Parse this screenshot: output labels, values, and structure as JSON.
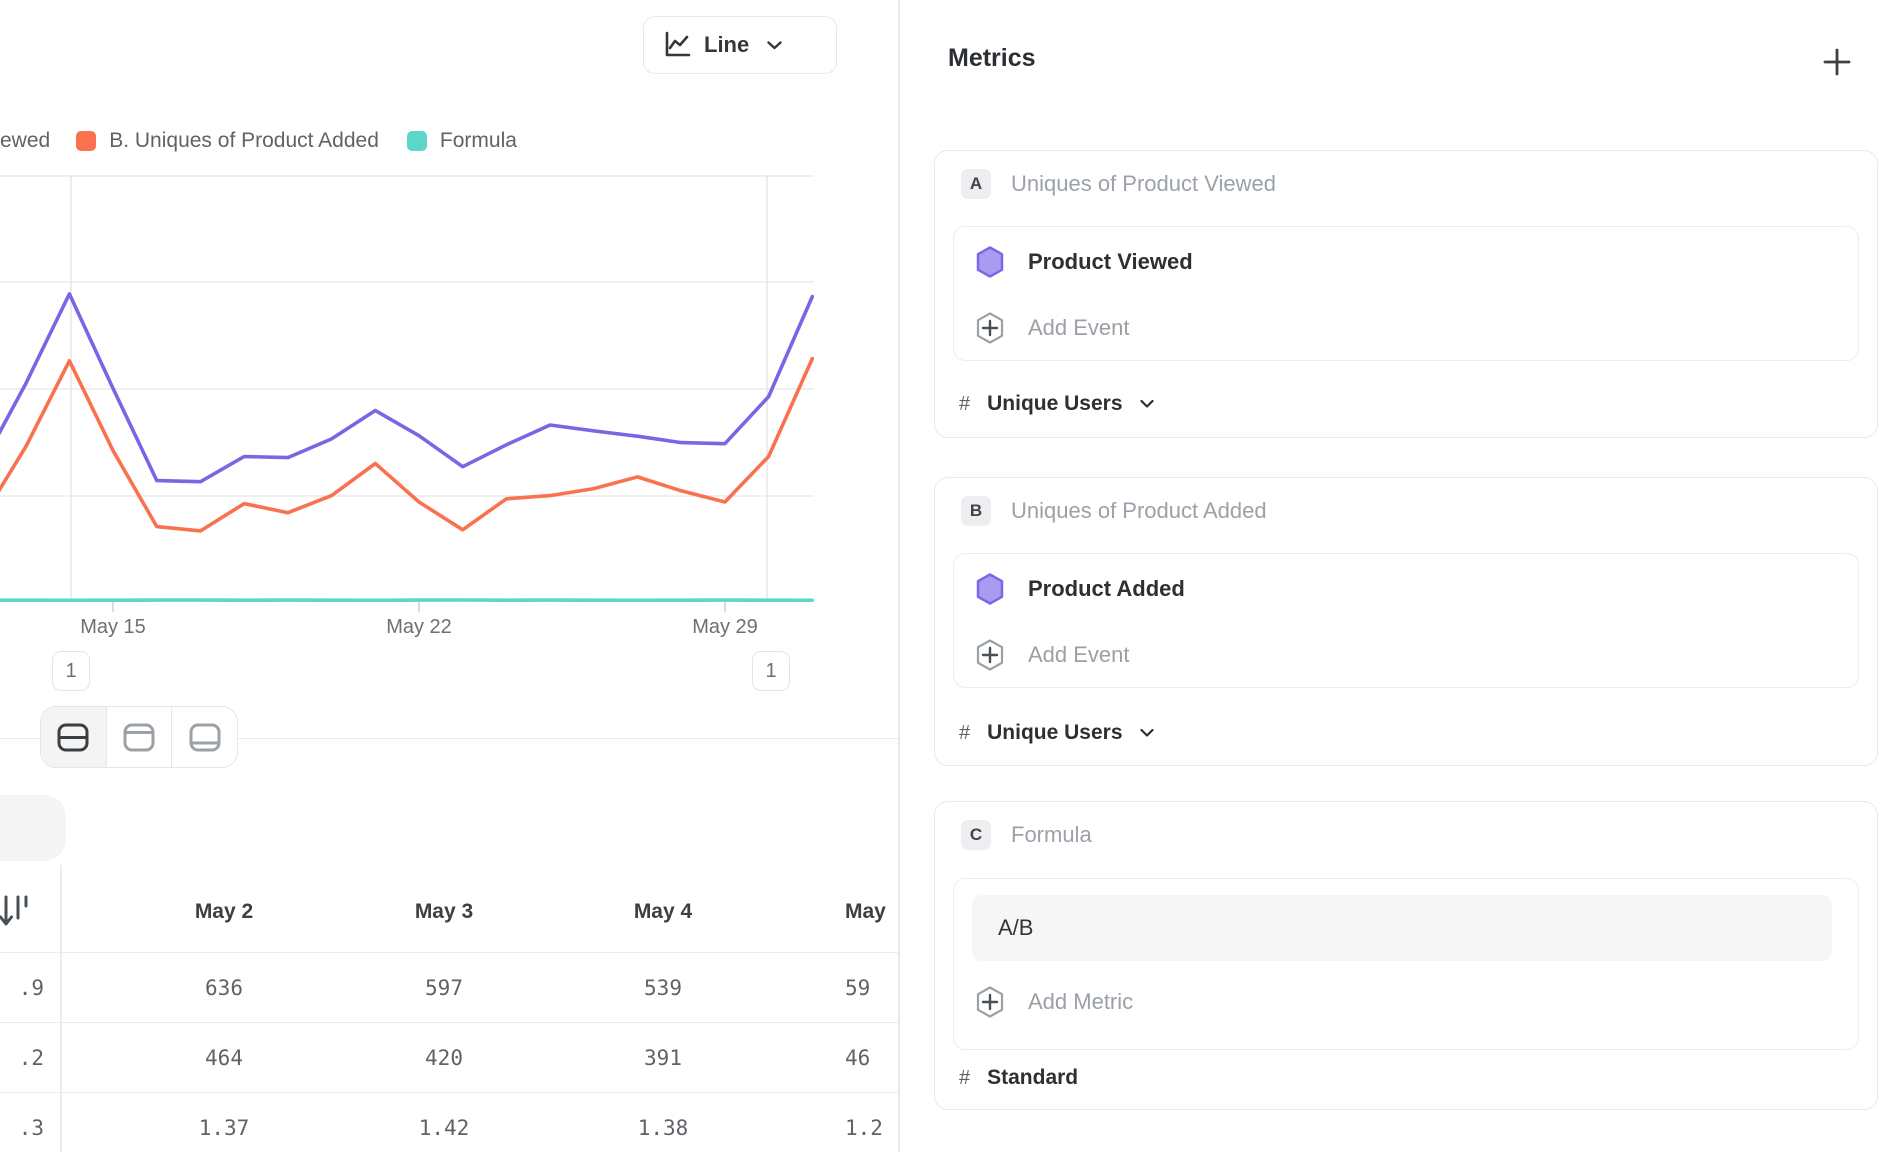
{
  "chart_controls": {
    "type_label": "Line"
  },
  "legend": {
    "partial_item_label": "ewed",
    "items": [
      {
        "label": "B. Uniques of Product Added",
        "color": "#f9714f"
      },
      {
        "label": "Formula",
        "color": "#5cd6c8"
      }
    ]
  },
  "chart_data": {
    "type": "line",
    "x": [
      "May 12",
      "May 13",
      "May 14",
      "May 15",
      "May 16",
      "May 17",
      "May 18",
      "May 19",
      "May 20",
      "May 21",
      "May 22",
      "May 23",
      "May 24",
      "May 25",
      "May 26",
      "May 27",
      "May 28",
      "May 29",
      "May 30",
      "May 31"
    ],
    "x_axis_ticks": [
      "May 15",
      "May 22",
      "May 29"
    ],
    "ylim": [
      0,
      800
    ],
    "grid": true,
    "legend_position": "top-left",
    "annotations": [
      {
        "label": "1",
        "date": "May 14"
      },
      {
        "label": "1",
        "date": "May 30"
      }
    ],
    "series": [
      {
        "name": "A. Uniques of Product Viewed",
        "color": "#7c64e4",
        "values": [
          254,
          406,
          574,
          397,
          225,
          223,
          270,
          268,
          303,
          356,
          309,
          251,
          292,
          329,
          318,
          308,
          296,
          294,
          382,
          569
        ]
      },
      {
        "name": "B. Uniques of Product Added",
        "color": "#f9714f",
        "values": [
          155,
          288,
          449,
          281,
          139,
          131,
          182,
          165,
          197,
          257,
          185,
          133,
          191,
          197,
          210,
          232,
          206,
          185,
          270,
          453
        ]
      },
      {
        "name": "Formula (A/B)",
        "color": "#5cd6c8",
        "values": [
          1.64,
          1.41,
          1.28,
          1.41,
          1.62,
          1.7,
          1.48,
          1.62,
          1.54,
          1.39,
          1.67,
          1.89,
          1.53,
          1.67,
          1.51,
          1.33,
          1.44,
          1.59,
          1.41,
          1.26
        ]
      }
    ]
  },
  "layout_toggle": {
    "active_index": 0,
    "options": [
      "split-view",
      "top-panel-view",
      "bottom-panel-view"
    ]
  },
  "table": {
    "columns": [
      "May 2",
      "May 3",
      "May 4",
      "May"
    ],
    "rows": [
      {
        "frozen": ".9",
        "values": [
          "636",
          "597",
          "539",
          "59"
        ]
      },
      {
        "frozen": ".2",
        "values": [
          "464",
          "420",
          "391",
          "46"
        ]
      },
      {
        "frozen": ".3",
        "values": [
          "1.37",
          "1.42",
          "1.38",
          "1.2"
        ]
      }
    ]
  },
  "metrics_panel": {
    "title": "Metrics",
    "cards": [
      {
        "badge": "A",
        "title": "Uniques of Product Viewed",
        "event": "Product Viewed",
        "add_label": "Add Event",
        "measure_prefix": "#",
        "measure": "Unique Users"
      },
      {
        "badge": "B",
        "title": "Uniques of Product Added",
        "event": "Product Added",
        "add_label": "Add Event",
        "measure_prefix": "#",
        "measure": "Unique Users"
      },
      {
        "badge": "C",
        "title": "Formula",
        "formula_value": "A/B",
        "add_label": "Add Metric",
        "measure_prefix": "#",
        "measure": "Standard"
      }
    ]
  },
  "colors": {
    "series_a": "#7c64e4",
    "series_b": "#f9714f",
    "formula": "#5cd6c8",
    "event_icon_fill": "#a99cf0",
    "event_icon_stroke": "#7b67e8"
  }
}
